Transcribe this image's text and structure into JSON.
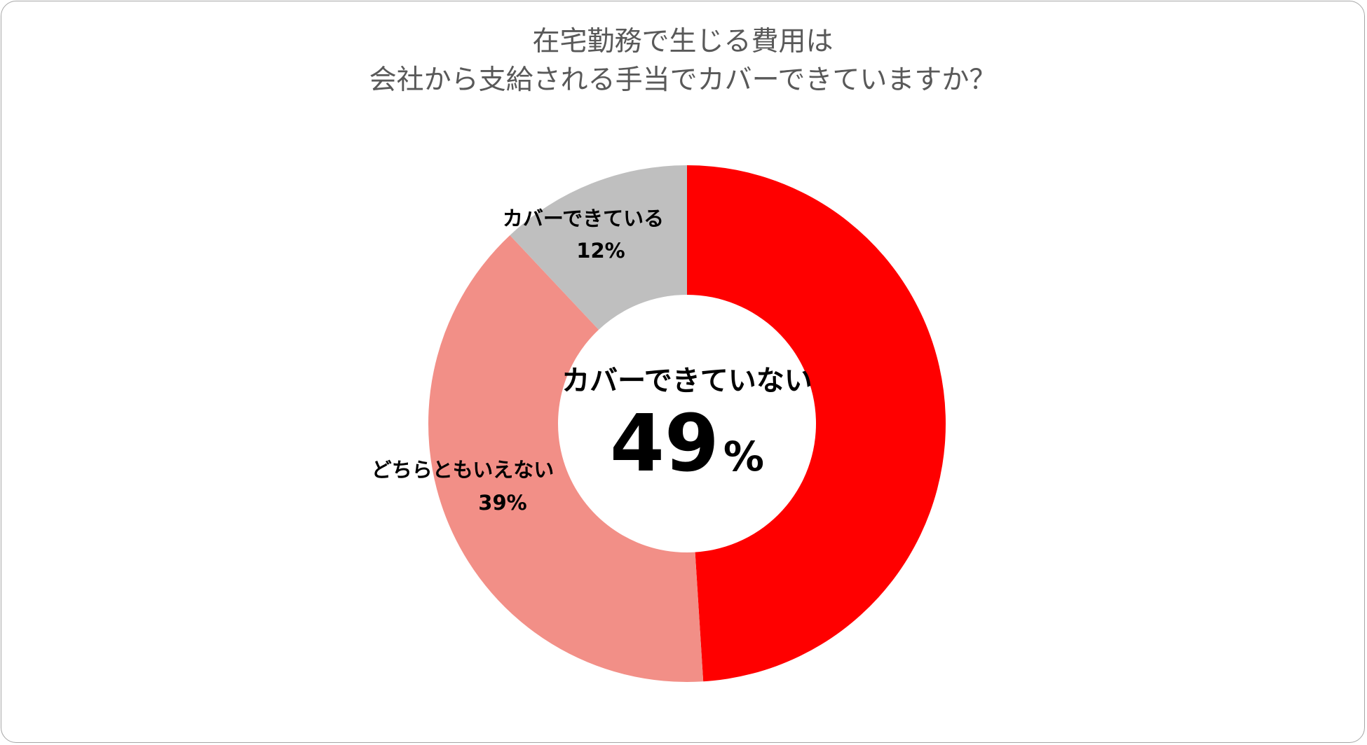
{
  "chart_data": {
    "type": "pie",
    "subtype": "donut",
    "title_lines": [
      "在宅勤務で生じる費用は",
      "会社から支給される手当でカバーできていますか？"
    ],
    "slices": [
      {
        "label": "カバーできていない",
        "value": 49,
        "display": "49",
        "unit": "%",
        "color": "#ff0000"
      },
      {
        "label": "どちらともいえない",
        "value": 39,
        "display": "39%",
        "color": "#f28f87"
      },
      {
        "label": "カバーできている",
        "value": 12,
        "display": "12%",
        "color": "#bfbfbf"
      }
    ],
    "center_label": {
      "text": "カバーできていない",
      "number": "49",
      "unit": "%"
    },
    "start_angle": "12 o'clock",
    "direction": "clockwise",
    "legend": "none"
  }
}
